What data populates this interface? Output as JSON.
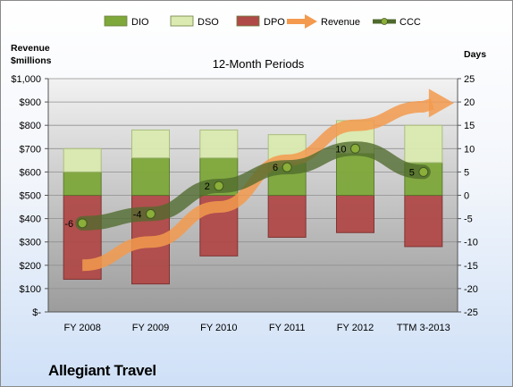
{
  "company": "Allegiant Travel",
  "chart_data": {
    "type": "bar",
    "title": "12-Month Periods",
    "categories": [
      "FY 2008",
      "FY 2009",
      "FY 2010",
      "FY 2011",
      "FY 2012",
      "TTM 3-2013"
    ],
    "left_axis": {
      "label_line1": "Revenue",
      "label_line2": "$millions",
      "range": [
        0,
        1000
      ],
      "ticks": [
        0,
        100,
        200,
        300,
        400,
        500,
        600,
        700,
        800,
        900,
        1000
      ],
      "tick_labels": [
        "$-",
        "$100",
        "$200",
        "$300",
        "$400",
        "$500",
        "$600",
        "$700",
        "$800",
        "$900",
        "$1,000"
      ]
    },
    "right_axis": {
      "label": "Days",
      "range": [
        -25,
        25
      ],
      "ticks": [
        -25,
        -20,
        -15,
        -10,
        -5,
        0,
        5,
        10,
        15,
        20,
        25
      ],
      "tick_labels": [
        "-25",
        "-20",
        "-15",
        "-10",
        "-5",
        "0",
        "5",
        "10",
        "15",
        "20",
        "25"
      ]
    },
    "legend": {
      "position": "top",
      "items": [
        {
          "name": "DIO",
          "kind": "bar",
          "color": "#7ea83a"
        },
        {
          "name": "DSO",
          "kind": "bar",
          "color": "#dbeab0"
        },
        {
          "name": "DPO",
          "kind": "bar",
          "color": "#b04a48"
        },
        {
          "name": "Revenue",
          "kind": "arrow",
          "color": "#f39a4e"
        },
        {
          "name": "CCC",
          "kind": "line",
          "color": "#4f6a2d"
        }
      ]
    },
    "series": [
      {
        "name": "DIO",
        "axis": "days",
        "values": [
          5,
          8,
          8,
          7,
          9,
          7
        ]
      },
      {
        "name": "DSO",
        "axis": "days",
        "values": [
          5,
          6,
          6,
          6,
          7,
          8
        ]
      },
      {
        "name": "DPO",
        "axis": "days",
        "values": [
          -18,
          -19,
          -13,
          -9,
          -8,
          -11
        ]
      },
      {
        "name": "CCC",
        "axis": "days",
        "values": [
          -6,
          -4,
          2,
          6,
          10,
          5
        ],
        "labels": [
          "-6",
          "-4",
          "2",
          "6",
          "10",
          "5"
        ]
      },
      {
        "name": "Revenue",
        "axis": "revenue",
        "values": [
          20,
          30,
          45,
          65,
          80,
          88
        ],
        "ylim": [
          0,
          100
        ]
      }
    ],
    "grid": true,
    "colors": {
      "plot_top": "#f2f2f2",
      "plot_bottom": "#9c9c9c",
      "dio": "#7ea83a",
      "dio_dark": "#58792a",
      "dso": "#dbeab0",
      "dso_dark": "#a8bd7a",
      "dpo": "#b04a48",
      "dpo_dark": "#7d2e2e",
      "revenue": "#f39a4e",
      "ccc": "#4f6a2d",
      "ccc_marker": "#8cae3a"
    }
  }
}
